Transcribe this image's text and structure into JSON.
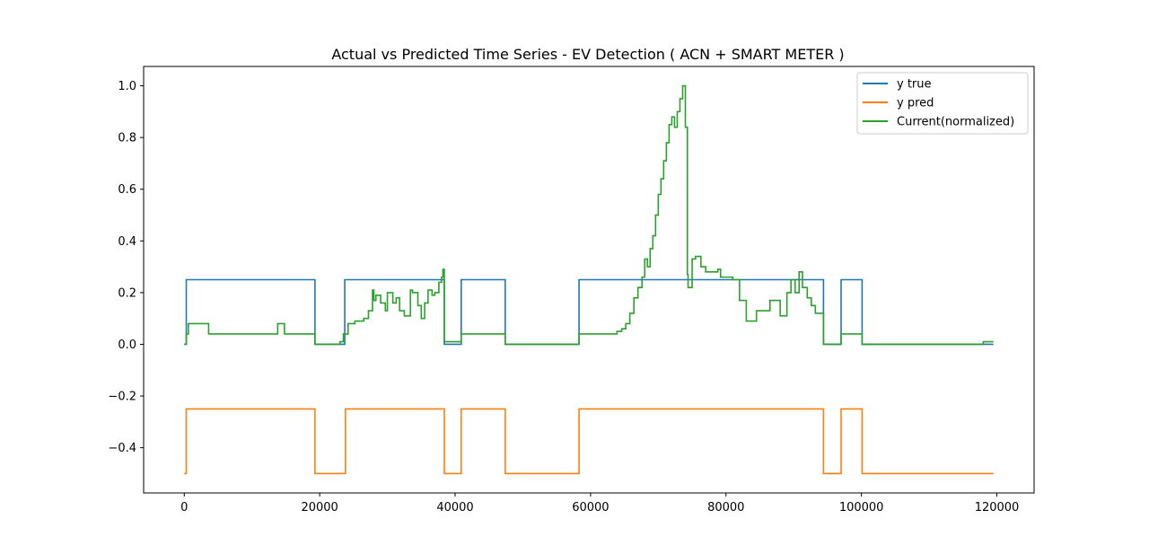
{
  "chart_data": {
    "type": "line",
    "title": "Actual vs Predicted Time Series - EV Detection ( ACN + SMART METER )",
    "xlabel": "",
    "ylabel": "",
    "xlim": [
      -6000,
      125500
    ],
    "ylim": [
      -0.575,
      1.075
    ],
    "x_ticks": [
      0,
      20000,
      40000,
      60000,
      80000,
      100000,
      120000
    ],
    "x_tick_labels": [
      "0",
      "20000",
      "40000",
      "60000",
      "80000",
      "100000",
      "120000"
    ],
    "y_ticks": [
      -0.4,
      -0.2,
      0.0,
      0.2,
      0.4,
      0.6,
      0.8,
      1.0
    ],
    "y_tick_labels": [
      "−0.4",
      "−0.2",
      "0.0",
      "0.2",
      "0.4",
      "0.6",
      "0.8",
      "1.0"
    ],
    "grid": false,
    "legend_position": "top-right",
    "series": [
      {
        "name": "y true",
        "color": "#1f77b4",
        "step": true,
        "x": [
          0,
          300,
          19300,
          23700,
          38400,
          40900,
          47400,
          58300,
          94400,
          97000,
          100100,
          119500
        ],
        "y": [
          0,
          0.25,
          0,
          0.25,
          0,
          0.25,
          0,
          0.25,
          0,
          0.25,
          0,
          0
        ]
      },
      {
        "name": "y pred",
        "color": "#ff7f0e",
        "step": true,
        "x": [
          0,
          300,
          19300,
          23800,
          38400,
          40900,
          47400,
          58300,
          94400,
          97000,
          100100,
          119500
        ],
        "y": [
          -0.5,
          -0.25,
          -0.5,
          -0.25,
          -0.5,
          -0.25,
          -0.5,
          -0.25,
          -0.5,
          -0.25,
          -0.5,
          -0.5
        ]
      },
      {
        "name": "Current(normalized)",
        "color": "#2ca02c",
        "step": true,
        "x": [
          0,
          300,
          600,
          3600,
          13800,
          14800,
          19300,
          23000,
          23500,
          24200,
          25200,
          26500,
          27200,
          27800,
          28000,
          28300,
          29000,
          29700,
          30000,
          30800,
          31300,
          31800,
          32500,
          33400,
          33700,
          34500,
          35000,
          35500,
          36000,
          36600,
          37000,
          37600,
          38000,
          38200,
          38400,
          40900,
          47400,
          58300,
          63900,
          64600,
          65200,
          65800,
          66400,
          67000,
          67600,
          68000,
          68400,
          68800,
          69200,
          69600,
          70000,
          70400,
          70800,
          71200,
          71600,
          72000,
          72400,
          72800,
          73200,
          73600,
          74000,
          74300,
          74400,
          75000,
          75500,
          76300,
          77000,
          78800,
          79200,
          81000,
          82000,
          83000,
          84500,
          86500,
          88000,
          89000,
          89600,
          90200,
          90800,
          91300,
          92000,
          92600,
          93200,
          94400,
          97000,
          100100,
          118000,
          119500
        ],
        "y": [
          0,
          0.04,
          0.08,
          0.04,
          0.08,
          0.04,
          0,
          0.01,
          0.04,
          0.08,
          0.09,
          0.1,
          0.13,
          0.21,
          0.17,
          0.19,
          0.16,
          0.13,
          0.2,
          0.16,
          0.18,
          0.13,
          0.11,
          0.21,
          0.2,
          0.15,
          0.1,
          0.16,
          0.21,
          0.19,
          0.2,
          0.24,
          0.26,
          0.29,
          0.01,
          0.04,
          0,
          0.04,
          0.05,
          0.06,
          0.08,
          0.12,
          0.18,
          0.22,
          0.26,
          0.33,
          0.3,
          0.37,
          0.42,
          0.5,
          0.58,
          0.64,
          0.71,
          0.78,
          0.85,
          0.88,
          0.84,
          0.9,
          0.95,
          1.0,
          0.84,
          0.27,
          0.22,
          0.33,
          0.34,
          0.3,
          0.28,
          0.29,
          0.26,
          0.25,
          0.17,
          0.09,
          0.13,
          0.17,
          0.11,
          0.2,
          0.25,
          0.2,
          0.28,
          0.22,
          0.18,
          0.15,
          0.12,
          0,
          0.04,
          0,
          0.01,
          0.01
        ]
      }
    ]
  }
}
